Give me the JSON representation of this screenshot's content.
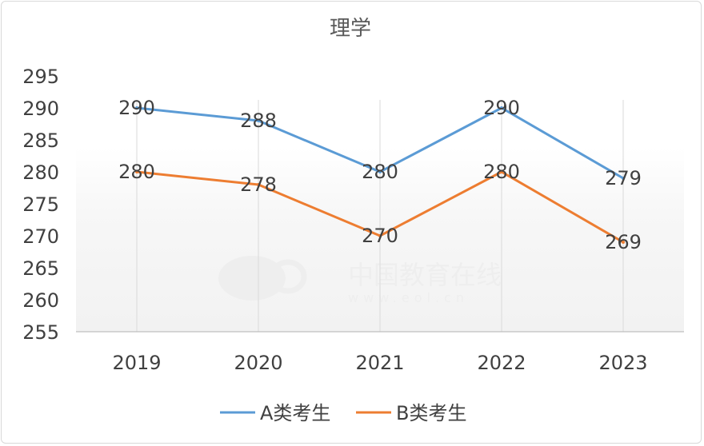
{
  "chart_data": {
    "type": "line",
    "title": "理学",
    "categories": [
      "2019",
      "2020",
      "2021",
      "2022",
      "2023"
    ],
    "series": [
      {
        "name": "A类考生",
        "color": "#5b9bd5",
        "values": [
          290,
          288,
          280,
          290,
          279
        ]
      },
      {
        "name": "B类考生",
        "color": "#ed7d31",
        "values": [
          280,
          278,
          270,
          280,
          269
        ]
      }
    ],
    "y_ticks": [
      255,
      260,
      265,
      270,
      275,
      280,
      285,
      290,
      295
    ],
    "ylim": [
      255,
      295
    ],
    "grid": "vertical",
    "legend": "bottom"
  },
  "watermark": {
    "brand": "中国教育在线",
    "url": "www.eol.cn"
  }
}
